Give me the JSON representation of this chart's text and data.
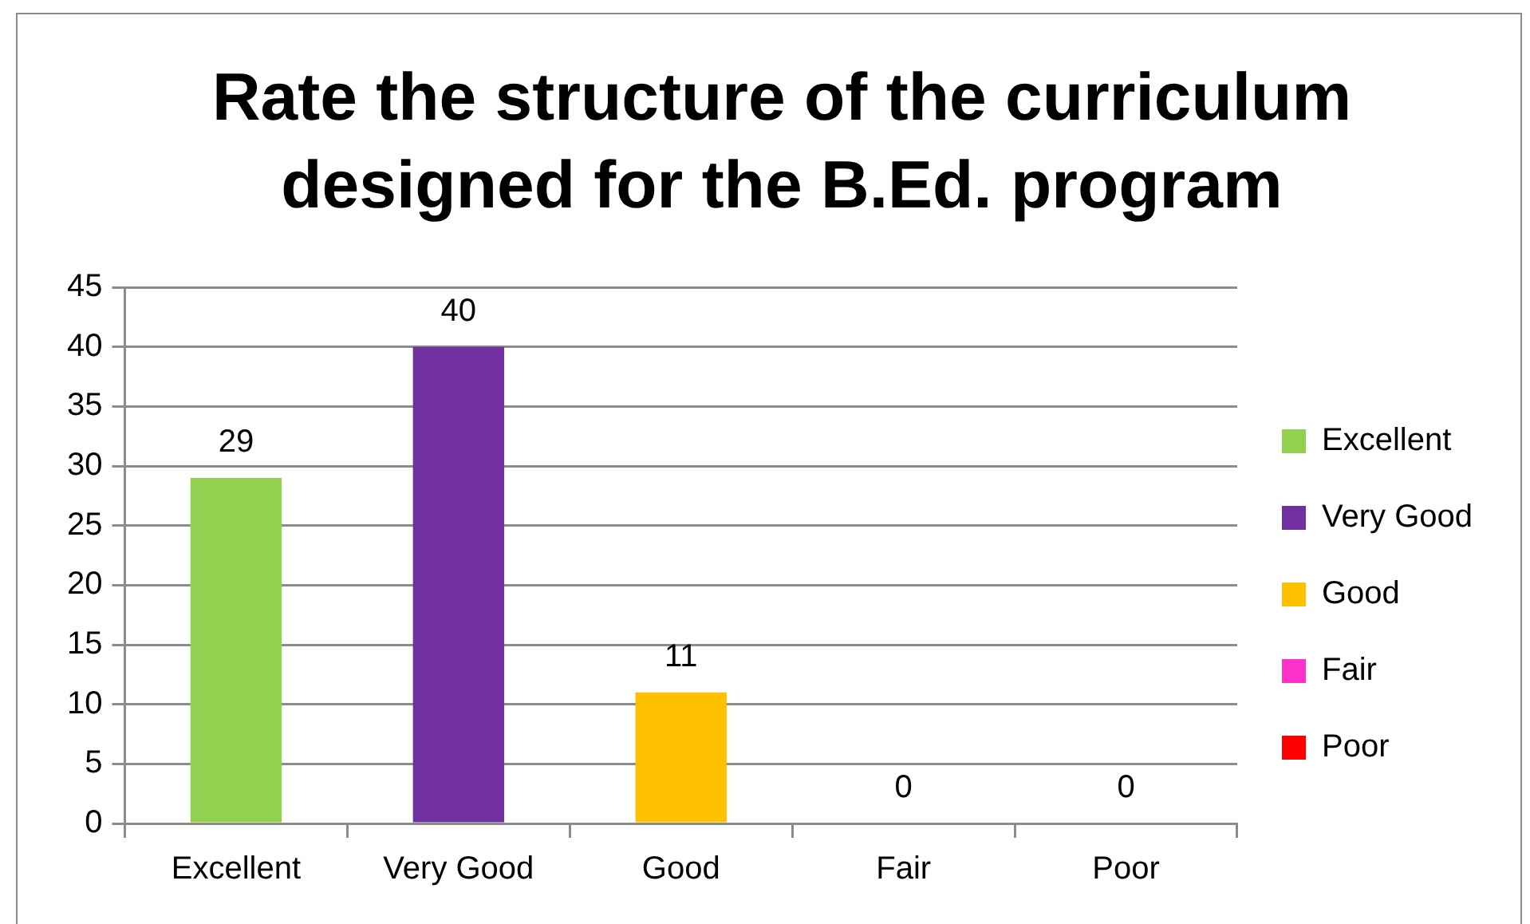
{
  "chart_data": {
    "type": "bar",
    "title": "Rate the structure of the curriculum designed for the B.Ed. program",
    "categories": [
      "Excellent",
      "Very Good",
      "Good",
      "Fair",
      "Poor"
    ],
    "series": [
      {
        "name": "Excellent",
        "color": "#92d050",
        "values": [
          29,
          null,
          null,
          null,
          null
        ]
      },
      {
        "name": "Very Good",
        "color": "#7030a0",
        "values": [
          null,
          40,
          null,
          null,
          null
        ]
      },
      {
        "name": "Good",
        "color": "#ffc000",
        "values": [
          null,
          null,
          11,
          null,
          null
        ]
      },
      {
        "name": "Fair",
        "color": "#ff33cc",
        "values": [
          null,
          null,
          null,
          0,
          null
        ]
      },
      {
        "name": "Poor",
        "color": "#ff0000",
        "values": [
          null,
          null,
          null,
          null,
          0
        ]
      }
    ],
    "ylim": [
      0,
      45
    ],
    "yticks": [
      0,
      5,
      10,
      15,
      20,
      25,
      30,
      35,
      40,
      45
    ],
    "grid": "y",
    "legend": "right",
    "data_labels": true
  }
}
